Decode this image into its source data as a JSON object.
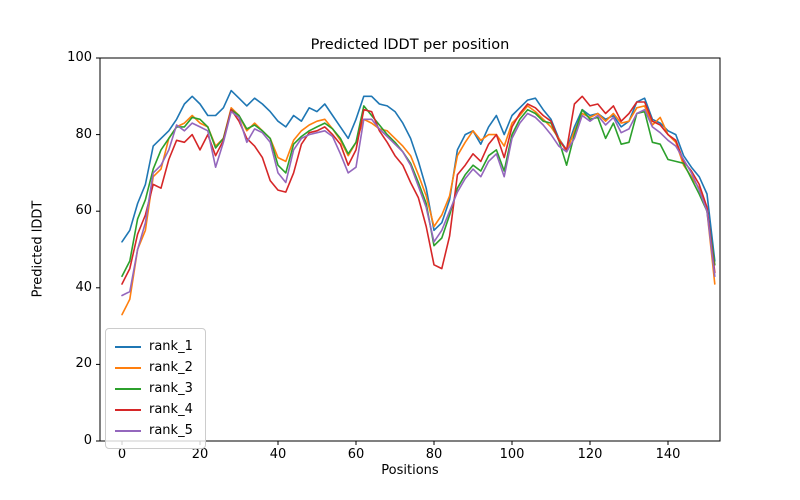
{
  "figure": {
    "title": "Predicted lDDT per position",
    "xlabel": "Positions",
    "ylabel": "Predicted lDDT"
  },
  "chart_data": {
    "type": "line",
    "title": "Predicted lDDT per position",
    "xlabel": "Positions",
    "ylabel": "Predicted lDDT",
    "xlim": [
      -5.64,
      153.33
    ],
    "ylim": [
      0,
      100
    ],
    "xticks": [
      0,
      20,
      40,
      60,
      80,
      100,
      120,
      140
    ],
    "yticks": [
      0,
      20,
      40,
      60,
      80,
      100
    ],
    "grid": false,
    "legend_position": "lower left",
    "x": [
      0,
      2,
      4,
      6,
      8,
      10,
      12,
      14,
      16,
      18,
      20,
      22,
      24,
      26,
      28,
      30,
      32,
      34,
      36,
      38,
      40,
      42,
      44,
      46,
      48,
      50,
      52,
      54,
      56,
      58,
      60,
      62,
      64,
      66,
      68,
      70,
      72,
      74,
      76,
      78,
      80,
      82,
      84,
      86,
      88,
      90,
      92,
      94,
      96,
      98,
      100,
      102,
      104,
      106,
      108,
      110,
      112,
      114,
      116,
      118,
      120,
      122,
      124,
      126,
      128,
      130,
      132,
      134,
      136,
      138,
      140,
      142,
      144,
      146,
      148,
      150,
      152
    ],
    "series": [
      {
        "name": "rank_1",
        "color": "#1f77b4",
        "values": [
          52,
          55,
          62,
          67,
          77,
          79,
          81,
          84,
          88,
          90,
          88,
          85,
          85,
          87,
          91.5,
          89.5,
          87.5,
          89.5,
          88,
          86,
          83.5,
          82,
          85,
          83.5,
          87,
          86,
          88,
          85,
          82,
          79,
          84,
          90,
          90,
          88,
          87.5,
          86,
          83,
          79,
          73,
          66,
          55,
          57,
          63,
          76,
          80,
          81,
          77.5,
          82,
          85,
          80,
          85,
          87,
          89,
          89.5,
          86.5,
          84,
          79,
          76,
          82,
          86.5,
          85,
          85.5,
          84,
          85,
          82,
          83.5,
          88.5,
          89.5,
          84,
          83,
          81,
          80,
          74.5,
          71.5,
          69,
          64.5,
          47
        ]
      },
      {
        "name": "rank_2",
        "color": "#ff7f0e",
        "values": [
          33,
          37,
          50,
          55,
          69,
          71,
          79,
          82,
          83,
          85,
          83,
          82,
          77,
          79,
          87,
          85,
          81,
          83,
          81,
          79,
          74,
          73,
          78.5,
          81,
          82.5,
          83.5,
          84,
          81.5,
          78.5,
          74.5,
          78,
          84,
          83,
          81.5,
          81,
          79,
          77,
          74.5,
          69.5,
          64,
          56,
          59,
          64,
          74.5,
          78,
          81,
          78.5,
          80,
          80,
          77,
          83,
          85,
          87.5,
          86,
          84,
          82,
          79,
          75.5,
          81,
          85.5,
          84.5,
          85.5,
          83.5,
          85.5,
          83,
          83.5,
          87,
          87.5,
          82.5,
          84.5,
          80,
          78,
          72,
          69,
          66,
          60,
          41
        ]
      },
      {
        "name": "rank_3",
        "color": "#2ca02c",
        "values": [
          43,
          47,
          58,
          63,
          71,
          76,
          79,
          82,
          82,
          84.5,
          84,
          82,
          76.5,
          79,
          86.5,
          85,
          81.5,
          82.5,
          81,
          79,
          72,
          70,
          77.5,
          79.5,
          81,
          82,
          83,
          81.5,
          79,
          75,
          78,
          87.5,
          85,
          82.5,
          80,
          78,
          75.5,
          72.5,
          67.5,
          62,
          51,
          53,
          59,
          66,
          69.5,
          72,
          70.5,
          74.5,
          76,
          70.5,
          80,
          84,
          86.5,
          85.5,
          83.5,
          83,
          78.5,
          72,
          80,
          86.5,
          84,
          84.5,
          79,
          83,
          77.5,
          78,
          85.5,
          86,
          78,
          77.5,
          73.5,
          73,
          72.5,
          68.5,
          64.5,
          60,
          46
        ]
      },
      {
        "name": "rank_4",
        "color": "#d62728",
        "values": [
          41,
          45,
          54,
          59,
          67,
          66,
          73.5,
          78.5,
          78,
          80,
          76,
          80,
          74.5,
          78.5,
          86.5,
          83.5,
          79,
          77,
          74,
          68,
          65.5,
          65,
          70,
          77.5,
          80.5,
          81,
          82,
          80,
          77.5,
          72,
          76,
          86.5,
          86,
          81,
          78,
          74.5,
          72,
          67.5,
          63.5,
          56,
          46,
          45,
          53.5,
          69.5,
          72,
          75,
          73,
          77.5,
          80,
          74,
          82,
          85.5,
          88,
          87,
          85,
          83.5,
          78.5,
          76,
          88,
          90,
          87.5,
          88,
          85.5,
          87.5,
          83.5,
          85.5,
          88.5,
          88.5,
          83.5,
          82.5,
          80,
          78.5,
          73,
          70.5,
          67,
          61,
          44
        ]
      },
      {
        "name": "rank_5",
        "color": "#9467bd",
        "values": [
          38,
          39,
          50,
          57,
          70,
          72,
          76,
          82.5,
          81,
          83,
          82,
          81,
          71.5,
          78,
          86,
          84.5,
          78,
          81.5,
          80.5,
          78,
          70,
          67.5,
          76,
          79,
          80,
          80.5,
          81,
          79.5,
          75,
          70,
          71.5,
          84,
          84,
          81.5,
          79.5,
          77.5,
          75.5,
          72,
          66.5,
          61,
          52,
          55,
          60,
          65,
          68.5,
          71,
          69,
          73,
          75,
          69,
          79,
          83,
          85.5,
          84.5,
          82.5,
          80,
          77,
          75.5,
          79,
          85,
          83.5,
          85,
          82.5,
          84.5,
          80.5,
          81.5,
          85.5,
          86.5,
          82,
          80.5,
          78.5,
          77,
          73.5,
          70,
          65.5,
          60,
          43
        ]
      }
    ]
  }
}
